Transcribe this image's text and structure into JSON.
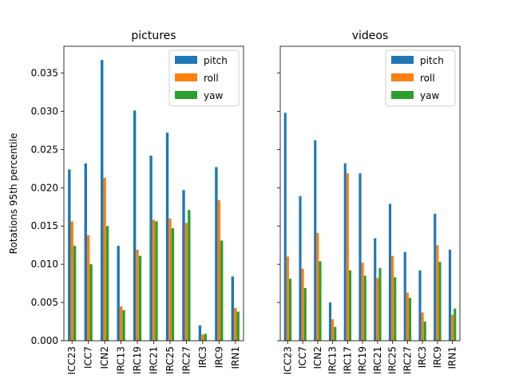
{
  "chart_data": {
    "type": "bar",
    "ylabel": "Rotations 95th percentile",
    "ylim": [
      0,
      0.0385
    ],
    "yticks": [
      "0.000",
      "0.005",
      "0.010",
      "0.015",
      "0.020",
      "0.025",
      "0.030",
      "0.035"
    ],
    "shared_y": true,
    "legend_position": "top-right",
    "series_colors": {
      "pitch": "#1f77b4",
      "roll": "#ff7f0e",
      "yaw": "#2ca02c"
    },
    "panels": [
      {
        "title": "pictures",
        "categories": [
          "ICC23",
          "ICC7",
          "ICN2",
          "IRC13",
          "IRC19",
          "IRC21",
          "IRC25",
          "IRC27",
          "IRC3",
          "IRC9",
          "IRN1"
        ],
        "series": [
          {
            "name": "pitch",
            "values": [
              0.0224,
              0.0232,
              0.0367,
              0.0124,
              0.0301,
              0.0242,
              0.0272,
              0.0197,
              0.002,
              0.0227,
              0.0084
            ]
          },
          {
            "name": "roll",
            "values": [
              0.0156,
              0.0138,
              0.0213,
              0.0045,
              0.0119,
              0.0158,
              0.016,
              0.0154,
              0.0008,
              0.0184,
              0.0043
            ]
          },
          {
            "name": "yaw",
            "values": [
              0.0124,
              0.01,
              0.015,
              0.004,
              0.0111,
              0.0156,
              0.0147,
              0.0171,
              0.0009,
              0.0131,
              0.0038
            ]
          }
        ]
      },
      {
        "title": "videos",
        "categories": [
          "ICC23",
          "ICC7",
          "ICN2",
          "IRC13",
          "IRC17",
          "IRC19",
          "IRC21",
          "IRC25",
          "IRC27",
          "IRC3",
          "IRC9",
          "IRN1"
        ],
        "series": [
          {
            "name": "pitch",
            "values": [
              0.0298,
              0.0189,
              0.0262,
              0.005,
              0.0232,
              0.0219,
              0.0134,
              0.0179,
              0.0116,
              0.0092,
              0.0166,
              0.0119
            ]
          },
          {
            "name": "roll",
            "values": [
              0.011,
              0.0094,
              0.0141,
              0.0028,
              0.0219,
              0.0102,
              0.0082,
              0.0111,
              0.0063,
              0.0037,
              0.0125,
              0.0034
            ]
          },
          {
            "name": "yaw",
            "values": [
              0.0081,
              0.0069,
              0.0104,
              0.0018,
              0.0092,
              0.0085,
              0.0095,
              0.0083,
              0.0056,
              0.0025,
              0.0103,
              0.0042
            ]
          }
        ]
      }
    ]
  }
}
